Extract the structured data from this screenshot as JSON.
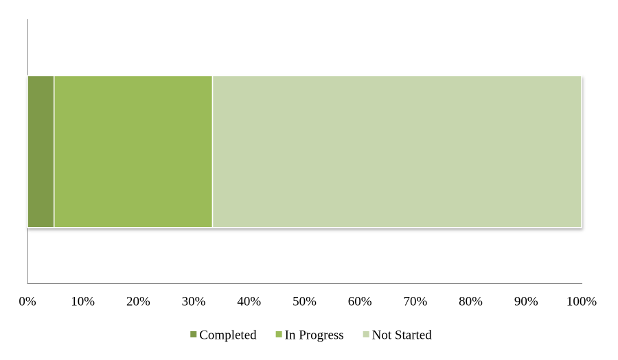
{
  "chart_data": {
    "type": "bar",
    "orientation": "horizontal",
    "stacked": true,
    "categories": [
      null
    ],
    "series": [
      {
        "name": "Completed",
        "color": "#7f9a48",
        "values": [
          4.8
        ]
      },
      {
        "name": "In Progress",
        "color": "#9bbb59",
        "values": [
          28.6
        ]
      },
      {
        "name": "Not Started",
        "color": "#c7d6ae",
        "values": [
          66.6
        ]
      }
    ],
    "xlim": [
      0,
      100
    ],
    "xticks": [
      {
        "value": 0,
        "label": "0%"
      },
      {
        "value": 10,
        "label": "10%"
      },
      {
        "value": 20,
        "label": "20%"
      },
      {
        "value": 30,
        "label": "30%"
      },
      {
        "value": 40,
        "label": "40%"
      },
      {
        "value": 50,
        "label": "50%"
      },
      {
        "value": 60,
        "label": "60%"
      },
      {
        "value": 70,
        "label": "70%"
      },
      {
        "value": 80,
        "label": "80%"
      },
      {
        "value": 90,
        "label": "90%"
      },
      {
        "value": 100,
        "label": "100%"
      }
    ],
    "grid": false,
    "legend": "bottom"
  }
}
